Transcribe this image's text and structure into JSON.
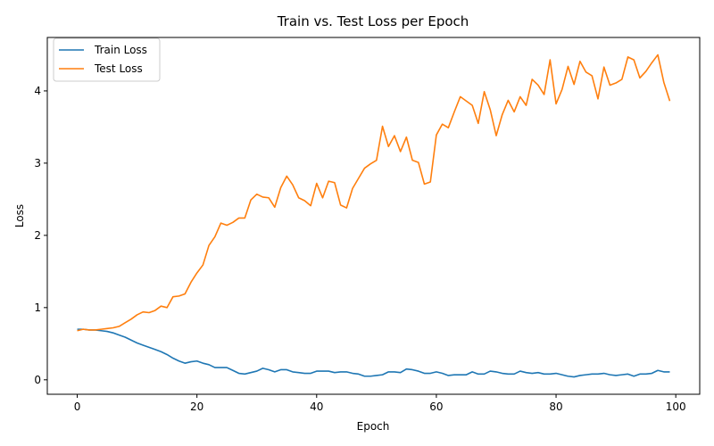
{
  "chart_data": {
    "type": "line",
    "title": "Train vs. Test Loss per Epoch",
    "xlabel": "Epoch",
    "ylabel": "Loss",
    "xlim": [
      -5,
      104
    ],
    "ylim": [
      -0.2,
      4.74
    ],
    "xticks": [
      0,
      20,
      40,
      60,
      80,
      100
    ],
    "yticks": [
      0,
      1,
      2,
      3,
      4
    ],
    "grid": false,
    "legend_position": "top-left",
    "series": [
      {
        "name": "Train Loss",
        "color": "#1f77b4",
        "values": [
          0.7,
          0.7,
          0.69,
          0.69,
          0.68,
          0.67,
          0.65,
          0.62,
          0.59,
          0.55,
          0.51,
          0.48,
          0.45,
          0.42,
          0.39,
          0.35,
          0.3,
          0.26,
          0.23,
          0.25,
          0.26,
          0.23,
          0.21,
          0.17,
          0.17,
          0.17,
          0.13,
          0.09,
          0.08,
          0.1,
          0.12,
          0.16,
          0.14,
          0.11,
          0.14,
          0.14,
          0.11,
          0.1,
          0.09,
          0.09,
          0.12,
          0.12,
          0.12,
          0.1,
          0.11,
          0.11,
          0.09,
          0.08,
          0.05,
          0.05,
          0.06,
          0.07,
          0.11,
          0.11,
          0.1,
          0.15,
          0.14,
          0.12,
          0.09,
          0.09,
          0.11,
          0.09,
          0.06,
          0.07,
          0.07,
          0.07,
          0.11,
          0.08,
          0.08,
          0.12,
          0.11,
          0.09,
          0.08,
          0.08,
          0.12,
          0.1,
          0.09,
          0.1,
          0.08,
          0.08,
          0.09,
          0.07,
          0.05,
          0.04,
          0.06,
          0.07,
          0.08,
          0.08,
          0.09,
          0.07,
          0.06,
          0.07,
          0.08,
          0.05,
          0.08,
          0.08,
          0.09,
          0.13,
          0.11,
          0.11
        ]
      },
      {
        "name": "Test Loss",
        "color": "#ff7f0e",
        "values": [
          0.68,
          0.7,
          0.69,
          0.69,
          0.7,
          0.71,
          0.72,
          0.74,
          0.79,
          0.84,
          0.9,
          0.94,
          0.93,
          0.96,
          1.02,
          1.0,
          1.15,
          1.16,
          1.19,
          1.35,
          1.48,
          1.59,
          1.86,
          1.98,
          2.17,
          2.14,
          2.18,
          2.24,
          2.24,
          2.49,
          2.57,
          2.53,
          2.52,
          2.39,
          2.66,
          2.82,
          2.7,
          2.52,
          2.48,
          2.41,
          2.72,
          2.52,
          2.75,
          2.73,
          2.42,
          2.38,
          2.65,
          2.79,
          2.93,
          2.99,
          3.04,
          3.51,
          3.23,
          3.38,
          3.16,
          3.36,
          3.04,
          3.01,
          2.71,
          2.74,
          3.39,
          3.54,
          3.49,
          3.71,
          3.92,
          3.86,
          3.8,
          3.55,
          3.99,
          3.74,
          3.38,
          3.67,
          3.87,
          3.71,
          3.92,
          3.8,
          4.16,
          4.08,
          3.95,
          4.43,
          3.82,
          4.02,
          4.34,
          4.09,
          4.41,
          4.26,
          4.21,
          3.89,
          4.33,
          4.08,
          4.11,
          4.16,
          4.47,
          4.43,
          4.18,
          4.27,
          4.39,
          4.5,
          4.12,
          3.86
        ]
      }
    ]
  }
}
